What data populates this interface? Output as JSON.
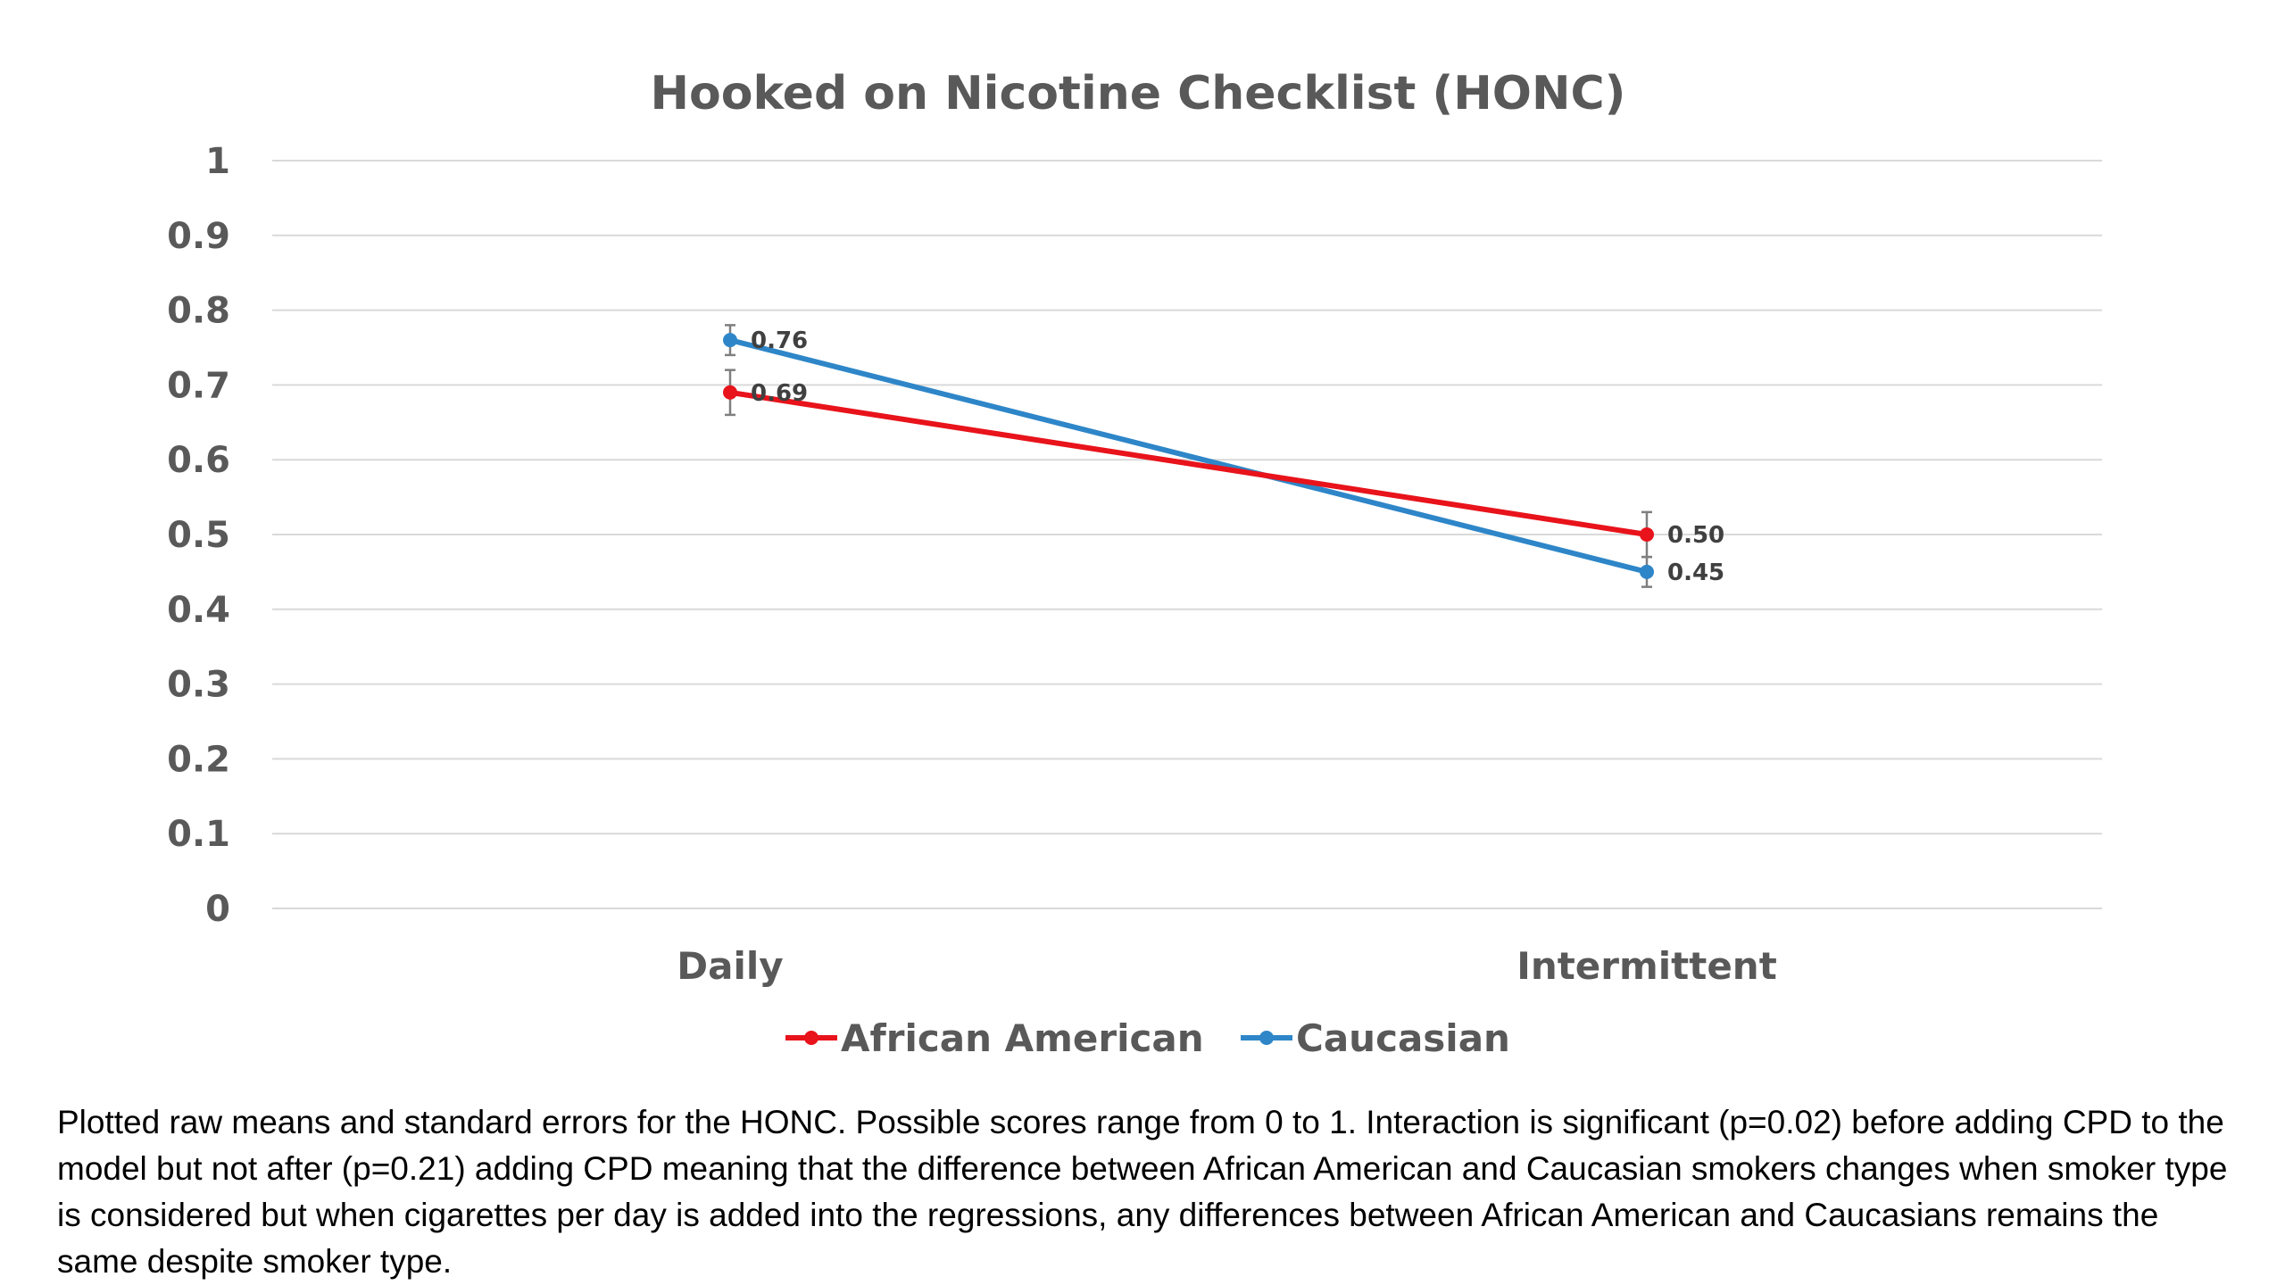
{
  "chart_data": {
    "type": "line",
    "title": "Hooked on Nicotine Checklist (HONC)",
    "categories": [
      "Daily",
      "Intermittent"
    ],
    "ylim": [
      0,
      1
    ],
    "yticks": [
      0,
      0.1,
      0.2,
      0.3,
      0.4,
      0.5,
      0.6,
      0.7,
      0.8,
      0.9,
      1
    ],
    "ytick_labels": [
      "0",
      "0.1",
      "0.2",
      "0.3",
      "0.4",
      "0.5",
      "0.6",
      "0.7",
      "0.8",
      "0.9",
      "1"
    ],
    "grid": true,
    "legend_position": "bottom",
    "series": [
      {
        "name": "African American",
        "color": "#e8131b",
        "values": [
          0.69,
          0.5
        ],
        "errors": [
          0.03,
          0.03
        ],
        "labels": [
          "0.69",
          "0.50"
        ]
      },
      {
        "name": "Caucasian",
        "color": "#2e86c8",
        "values": [
          0.76,
          0.45
        ],
        "errors": [
          0.02,
          0.02
        ],
        "labels": [
          "0.76",
          "0.45"
        ]
      }
    ]
  },
  "caption": "Plotted raw means and standard errors for the HONC.  Possible scores range from 0 to 1.  Interaction is significant (p=0.02) before adding CPD to the model but not after (p=0.21) adding CPD meaning that the difference between African American and Caucasian smokers changes when smoker type is considered but when cigarettes per day is added into the regressions, any differences between African American and Caucasians remains the same despite smoker type."
}
